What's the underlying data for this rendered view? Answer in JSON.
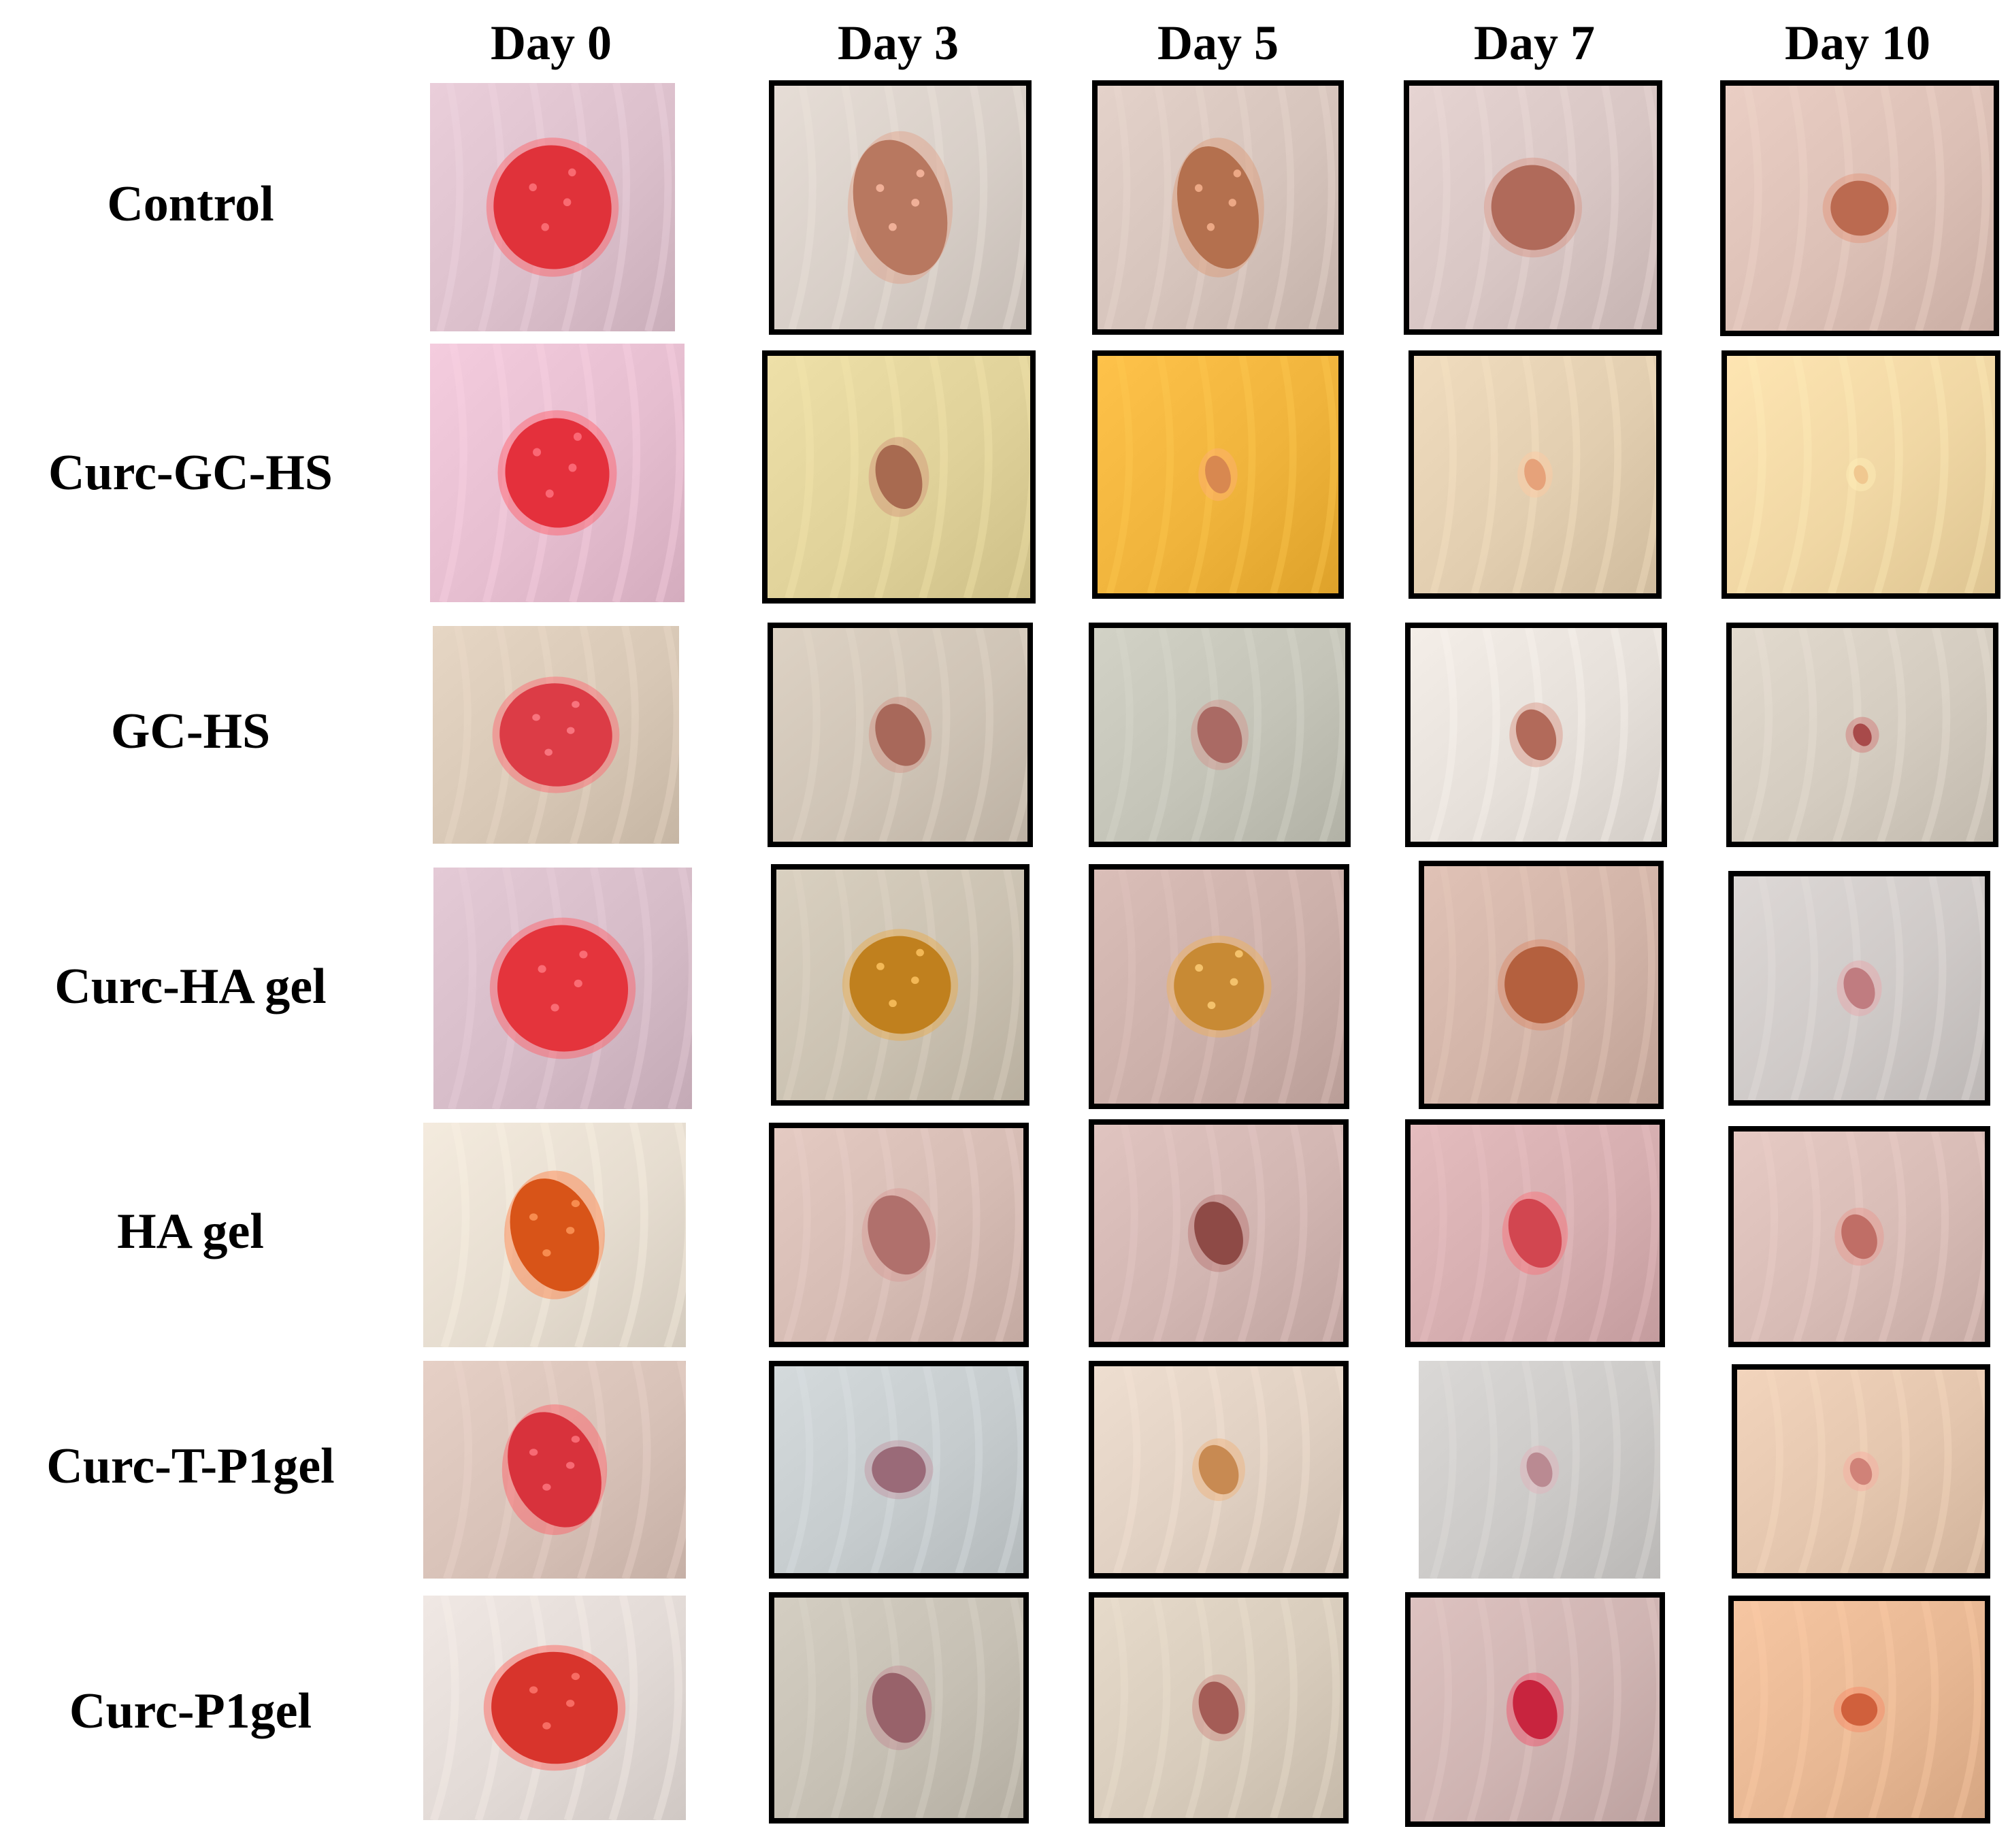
{
  "figure": {
    "columns": [
      "Day 0",
      "Day 3",
      "Day 5",
      "Day 7",
      "Day 10"
    ],
    "rows": [
      {
        "label": "Control"
      },
      {
        "label": "Curc-GC-HS"
      },
      {
        "label": "GC-HS"
      },
      {
        "label": "Curc-HA gel"
      },
      {
        "label": "HA gel"
      },
      {
        "label": "Curc-T-P1gel"
      },
      {
        "label": "Curc-P1gel"
      }
    ],
    "tiles": [
      [
        {
          "bg": "#dcc0cc",
          "wound": "#e0323a",
          "shape": "round",
          "scale": 1.0
        },
        {
          "bg": "#d8cfc8",
          "wound": "#b87860",
          "shape": "oval",
          "scale": 1.05
        },
        {
          "bg": "#d6c4bc",
          "wound": "#b4704e",
          "shape": "oval",
          "scale": 0.95
        },
        {
          "bg": "#d8c6c4",
          "wound": "#b06a5a",
          "shape": "round",
          "scale": 0.7
        },
        {
          "bg": "#dcc0b6",
          "wound": "#bb6a50",
          "shape": "round",
          "scale": 0.45
        }
      ],
      [
        {
          "bg": "#e6bed0",
          "wound": "#e4303c",
          "shape": "round",
          "scale": 0.85
        },
        {
          "bg": "#e0d29a",
          "wound": "#a86a50",
          "shape": "oval",
          "scale": 0.5
        },
        {
          "bg": "#f0b43c",
          "wound": "#d88850",
          "shape": "oval",
          "scale": 0.3
        },
        {
          "bg": "#e2ceb0",
          "wound": "#e6a27a",
          "shape": "oval",
          "scale": 0.25
        },
        {
          "bg": "#f0d7a4",
          "wound": "#f0c890",
          "shape": "oval",
          "scale": 0.15
        }
      ],
      [
        {
          "bg": "#d8c8b6",
          "wound": "#dc3c46",
          "shape": "round",
          "scale": 0.95
        },
        {
          "bg": "#cfc4b6",
          "wound": "#a8685a",
          "shape": "oval",
          "scale": 0.55
        },
        {
          "bg": "#c4c4b8",
          "wound": "#aa6a64",
          "shape": "oval",
          "scale": 0.5
        },
        {
          "bg": "#e6e0da",
          "wound": "#b26a5a",
          "shape": "oval",
          "scale": 0.45
        },
        {
          "bg": "#d4ccc0",
          "wound": "#a84a4a",
          "shape": "oval",
          "scale": 0.2
        }
      ],
      [
        {
          "bg": "#d6bcc8",
          "wound": "#e4343c",
          "shape": "round",
          "scale": 1.05
        },
        {
          "bg": "#cbc2b2",
          "wound": "#c0801e",
          "shape": "round",
          "scale": 0.85
        },
        {
          "bg": "#ccb0aa",
          "wound": "#c88a34",
          "shape": "round",
          "scale": 0.75
        },
        {
          "bg": "#d2b4a8",
          "wound": "#b4603e",
          "shape": "round",
          "scale": 0.65
        },
        {
          "bg": "#cfcac8",
          "wound": "#c07c80",
          "shape": "oval",
          "scale": 0.35
        }
      ],
      [
        {
          "bg": "#e6ddd0",
          "wound": "#d85418",
          "shape": "oval",
          "scale": 0.95
        },
        {
          "bg": "#d6bcb4",
          "wound": "#b0706c",
          "shape": "oval",
          "scale": 0.7
        },
        {
          "bg": "#d2b6b2",
          "wound": "#8e4a46",
          "shape": "oval",
          "scale": 0.55
        },
        {
          "bg": "#d6aeb0",
          "wound": "#d24650",
          "shape": "oval",
          "scale": 0.6
        },
        {
          "bg": "#d8bcb6",
          "wound": "#c06e66",
          "shape": "oval",
          "scale": 0.4
        }
      ],
      [
        {
          "bg": "#d8c2b8",
          "wound": "#d8323c",
          "shape": "oval",
          "scale": 1.0
        },
        {
          "bg": "#c6ccce",
          "wound": "#9a6a78",
          "shape": "round",
          "scale": 0.45
        },
        {
          "bg": "#e0d0c2",
          "wound": "#c88a52",
          "shape": "oval",
          "scale": 0.45
        },
        {
          "bg": "#cccac8",
          "wound": "#ba8a92",
          "shape": "oval",
          "scale": 0.3
        },
        {
          "bg": "#e4c6ae",
          "wound": "#d08278",
          "shape": "oval",
          "scale": 0.25
        }
      ],
      [
        {
          "bg": "#e2dad6",
          "wound": "#d8342c",
          "shape": "round",
          "scale": 1.0
        },
        {
          "bg": "#c6c0b4",
          "wound": "#98626a",
          "shape": "oval",
          "scale": 0.6
        },
        {
          "bg": "#d8ccbc",
          "wound": "#a45c56",
          "shape": "oval",
          "scale": 0.45
        },
        {
          "bg": "#cfb4b2",
          "wound": "#c8243e",
          "shape": "oval",
          "scale": 0.5
        },
        {
          "bg": "#e8b894",
          "wound": "#d0603c",
          "shape": "round",
          "scale": 0.3
        }
      ]
    ]
  }
}
